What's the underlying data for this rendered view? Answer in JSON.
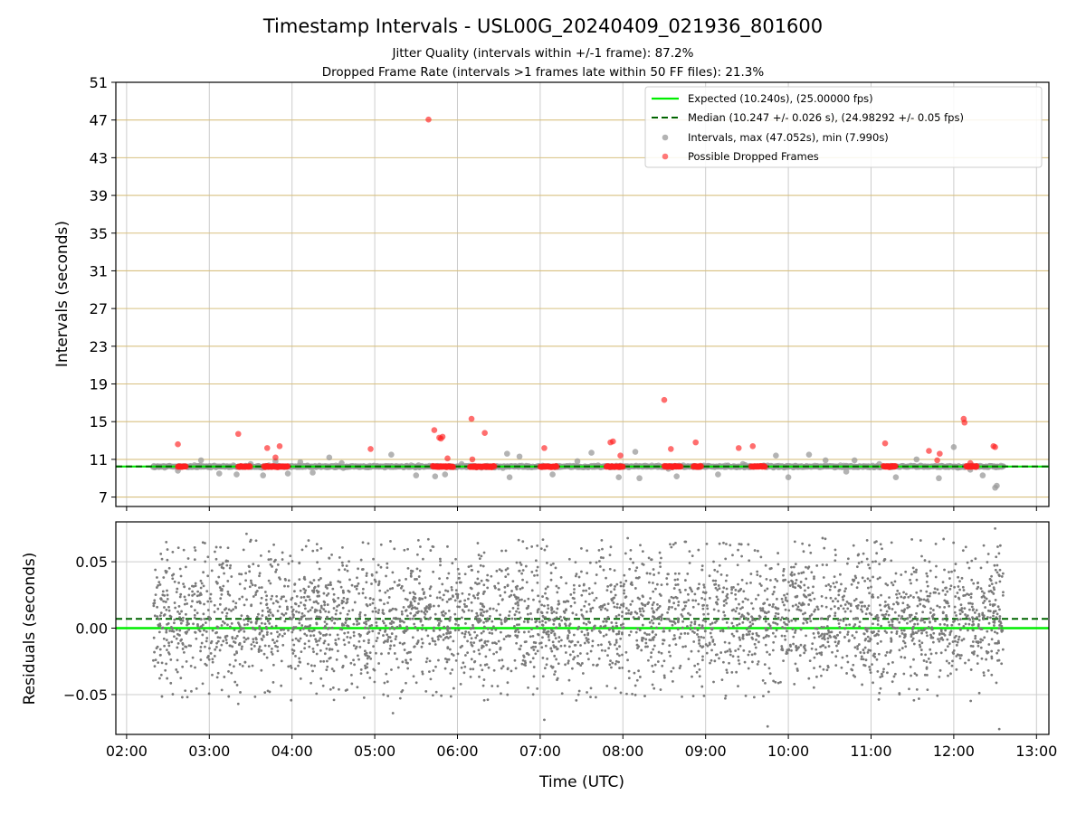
{
  "colors": {
    "expected": "#00ee00",
    "median": "#006400",
    "intervals": "#999999",
    "dropped": "#ff2020",
    "residuals": "#7a7a7a",
    "hgrid_top": "#d8c080",
    "grid": "#cccccc"
  },
  "chart_data": [
    {
      "type": "scatter",
      "title": "Timestamp Intervals - USL00G_20240409_021936_801600",
      "subtitle_lines": [
        "Jitter Quality (intervals within +/-1 frame): 87.2%",
        "Dropped Frame Rate (intervals >1 frames late within 50 FF files): 21.3%"
      ],
      "xlabel": "",
      "ylabel": "Intervals (seconds)",
      "xlim_hours": [
        1.87,
        13.15
      ],
      "ylim": [
        6,
        51
      ],
      "yticks": [
        7,
        11,
        15,
        19,
        23,
        27,
        31,
        35,
        39,
        43,
        47,
        51
      ],
      "ytick_labels": [
        "7",
        "11",
        "15",
        "19",
        "23",
        "27",
        "31",
        "35",
        "39",
        "43",
        "47",
        "51"
      ],
      "grid": true,
      "legend": {
        "placement": "top-right",
        "entries": [
          "Expected (10.240s), (25.00000 fps)",
          "Median (10.247 +/- 0.026 s), (24.98292 +/- 0.05 fps)",
          "Intervals, max (47.052s), min (7.990s)",
          "Possible Dropped Frames"
        ]
      },
      "reference_lines": {
        "expected": 10.24,
        "median": 10.247
      },
      "series": [
        {
          "name": "Intervals, max (47.052s), min (7.990s)",
          "baseline": 10.24,
          "baseline_x_range": [
            2.32,
            12.6
          ],
          "outliers_x": [
            2.62,
            2.9,
            3.12,
            3.33,
            3.5,
            3.65,
            3.8,
            3.95,
            4.1,
            4.25,
            4.45,
            4.6,
            5.2,
            5.5,
            5.73,
            5.85,
            6.05,
            6.6,
            6.63,
            6.75,
            7.15,
            7.45,
            7.62,
            7.95,
            8.15,
            8.2,
            8.55,
            8.65,
            9.15,
            9.45,
            9.85,
            10.0,
            10.25,
            10.45,
            10.7,
            10.8,
            11.1,
            11.3,
            11.55,
            11.82,
            11.9,
            12.0,
            12.2,
            12.35,
            12.5,
            12.52
          ],
          "outliers_y": [
            9.8,
            10.9,
            9.5,
            9.4,
            10.5,
            9.3,
            10.8,
            9.5,
            10.7,
            9.6,
            11.2,
            10.6,
            11.5,
            9.3,
            9.2,
            9.4,
            10.5,
            11.6,
            9.1,
            11.3,
            9.4,
            10.8,
            11.7,
            9.1,
            11.8,
            9.0,
            10.0,
            9.2,
            9.4,
            10.5,
            11.4,
            9.1,
            11.5,
            10.9,
            9.7,
            10.9,
            10.5,
            9.1,
            11.0,
            9.0,
            10.2,
            12.3,
            9.9,
            9.3,
            7.99,
            8.2
          ]
        },
        {
          "name": "Possible Dropped Frames",
          "clusters_x_range": [
            [
              2.62,
              2.72
            ],
            [
              3.35,
              3.5
            ],
            [
              3.66,
              3.95
            ],
            [
              5.7,
              5.95
            ],
            [
              6.15,
              6.45
            ],
            [
              7.0,
              7.2
            ],
            [
              7.8,
              8.0
            ],
            [
              8.5,
              8.7
            ],
            [
              8.85,
              8.95
            ],
            [
              9.55,
              9.72
            ],
            [
              11.15,
              11.3
            ],
            [
              12.15,
              12.28
            ]
          ],
          "cluster_value": 10.24,
          "spikes_x": [
            2.62,
            3.35,
            3.7,
            3.85,
            3.8,
            4.95,
            5.65,
            5.72,
            5.78,
            5.8,
            5.82,
            5.88,
            6.17,
            6.18,
            6.33,
            7.05,
            7.85,
            7.88,
            7.97,
            8.5,
            8.58,
            8.88,
            9.4,
            9.57,
            11.17,
            11.7,
            11.8,
            11.83,
            12.12,
            12.13,
            12.2,
            12.48,
            12.5
          ],
          "spikes_y": [
            12.6,
            13.7,
            12.2,
            12.4,
            11.2,
            12.1,
            47.05,
            14.1,
            13.3,
            13.2,
            13.4,
            11.1,
            15.3,
            11.0,
            13.8,
            12.2,
            12.8,
            12.9,
            11.4,
            17.3,
            12.1,
            12.8,
            12.2,
            12.4,
            12.7,
            11.9,
            10.9,
            11.6,
            15.3,
            14.9,
            10.6,
            12.4,
            12.3
          ]
        }
      ]
    },
    {
      "type": "scatter",
      "xlabel": "Time (UTC)",
      "ylabel": "Residuals (seconds)",
      "xlim_hours": [
        1.87,
        13.15
      ],
      "ylim": [
        -0.08,
        0.08
      ],
      "yticks": [
        -0.05,
        0.0,
        0.05
      ],
      "ytick_labels": [
        "−0.05",
        "0.00",
        "0.05"
      ],
      "xticks_hours": [
        2,
        3,
        4,
        5,
        6,
        7,
        8,
        9,
        10,
        11,
        12,
        13
      ],
      "xtick_labels": [
        "02:00",
        "03:00",
        "04:00",
        "05:00",
        "06:00",
        "07:00",
        "08:00",
        "09:00",
        "10:00",
        "11:00",
        "12:00",
        "13:00"
      ],
      "grid": true,
      "reference_lines": {
        "expected": 0.0,
        "median": 0.007
      },
      "series": [
        {
          "name": "Residuals",
          "x_range": [
            2.32,
            12.6
          ],
          "approx_points": 3600,
          "center": 0.007,
          "spread_std": 0.026,
          "extremes_x": [
            3.35,
            3.45,
            4.2,
            4.65,
            5.22,
            7.05,
            8.75,
            9.75,
            12.5,
            12.55
          ],
          "extremes_y": [
            -0.057,
            0.071,
            0.066,
            -0.047,
            -0.064,
            -0.069,
            0.065,
            -0.074,
            0.075,
            -0.076
          ]
        }
      ]
    }
  ]
}
